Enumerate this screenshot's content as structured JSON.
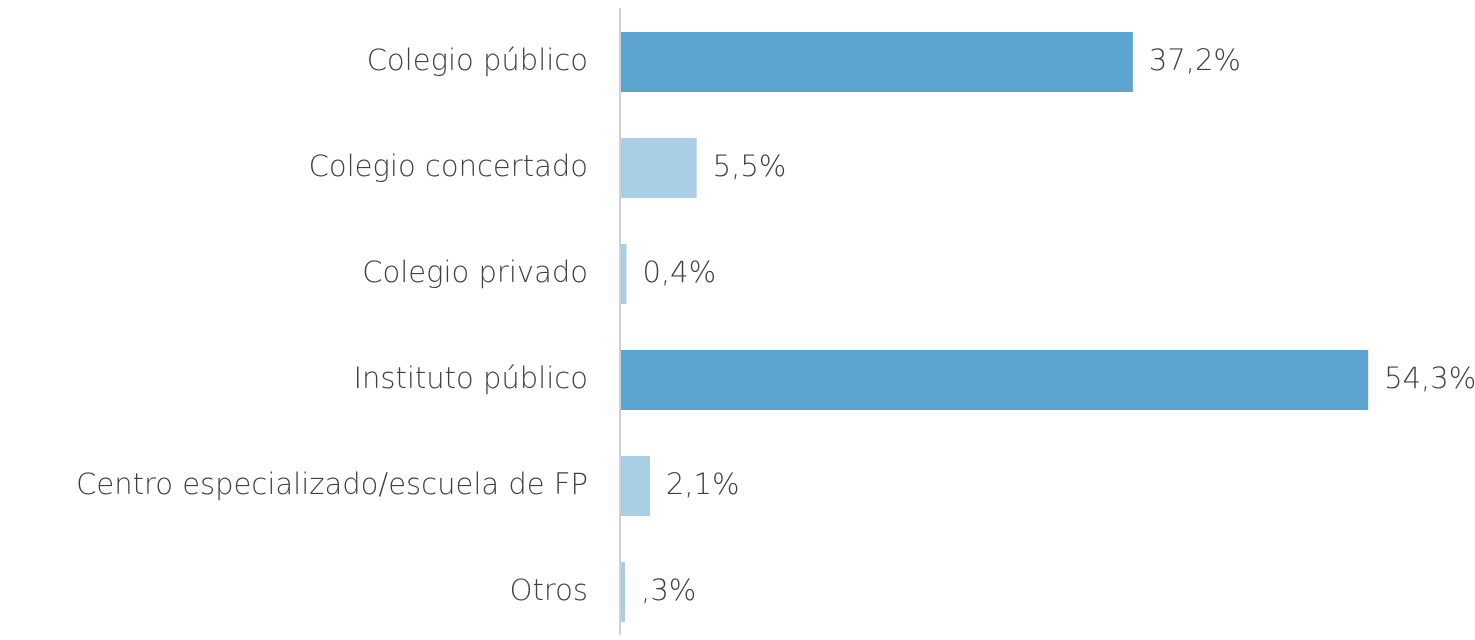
{
  "chart_data": {
    "type": "bar",
    "orientation": "horizontal",
    "categories": [
      "Colegio público",
      "Colegio concertado",
      "Colegio privado",
      "Instituto público",
      "Centro especializado/escuela de FP",
      "Otros"
    ],
    "values": [
      37.2,
      5.5,
      0.4,
      54.3,
      2.1,
      0.3
    ],
    "value_labels": [
      "37,2%",
      "5,5%",
      "0,4%",
      "54,3%",
      "2,1%",
      ",3%"
    ],
    "colors": [
      "#5ba4cf",
      "#a9cfe6",
      "#a9cfe6",
      "#5ba4cf",
      "#a9cfe6",
      "#a9cfe6"
    ]
  }
}
